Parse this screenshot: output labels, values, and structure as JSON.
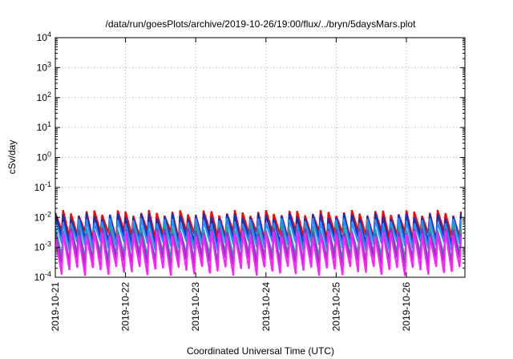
{
  "chart_data": {
    "type": "line",
    "title": "/data/run/goesPlots/archive/2019-10-26/19:00/flux/../bryn/5daysMars.plot",
    "xlabel": "Coordinated Universal Time (UTC)",
    "ylabel": "cSv/day",
    "x_scale": "time",
    "x_range": [
      "2019-10-21T00:00",
      "2019-10-26T20:00"
    ],
    "x_ticks": [
      "2019-10-21",
      "2019-10-22",
      "2019-10-23",
      "2019-10-24",
      "2019-10-25",
      "2019-10-26"
    ],
    "y_scale": "log",
    "y_range": [
      0.0001,
      10000
    ],
    "y_ticks": [
      {
        "base": "10",
        "exp": "-4",
        "value": 0.0001
      },
      {
        "base": "10",
        "exp": "-3",
        "value": 0.001
      },
      {
        "base": "10",
        "exp": "-2",
        "value": 0.01
      },
      {
        "base": "10",
        "exp": "-1",
        "value": 0.1
      },
      {
        "base": "10",
        "exp": "0",
        "value": 1
      },
      {
        "base": "10",
        "exp": "1",
        "value": 10
      },
      {
        "base": "10",
        "exp": "2",
        "value": 100
      },
      {
        "base": "10",
        "exp": "3",
        "value": 1000
      },
      {
        "base": "10",
        "exp": "4",
        "value": 10000
      }
    ],
    "grid": true,
    "pattern": "sawtooth",
    "cycles_per_day": 9,
    "series": [
      {
        "color": "#ff0000",
        "peak": 0.014,
        "trough": 0.0025
      },
      {
        "color": "#1030c0",
        "peak": 0.011,
        "trough": 0.0016
      },
      {
        "color": "#2090ff",
        "peak": 0.0075,
        "trough": 0.0011
      },
      {
        "color": "#20a0a0",
        "peak": 0.0045,
        "trough": 0.00045
      },
      {
        "color": "#9030c0",
        "peak": 0.0035,
        "trough": 0.00032
      },
      {
        "color": "#ff20ff",
        "peak": 0.0028,
        "trough": 0.00016
      }
    ]
  }
}
